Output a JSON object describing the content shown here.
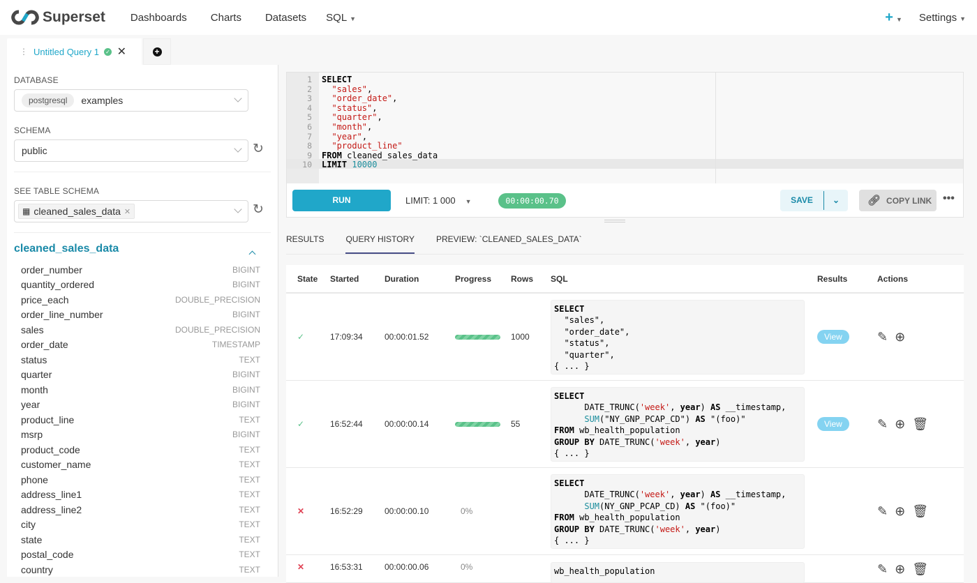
{
  "nav": {
    "brand": "Superset",
    "items": [
      "Dashboards",
      "Charts",
      "Datasets",
      "SQL"
    ],
    "settings": "Settings"
  },
  "query_tab": {
    "title": "Untitled Query 1"
  },
  "left": {
    "database_label": "DATABASE",
    "database_engine": "postgresql",
    "database": "examples",
    "schema_label": "SCHEMA",
    "schema": "public",
    "table_label": "SEE TABLE SCHEMA",
    "table": "cleaned_sales_data",
    "table_name": "cleaned_sales_data",
    "columns": [
      {
        "name": "order_number",
        "type": "BIGINT"
      },
      {
        "name": "quantity_ordered",
        "type": "BIGINT"
      },
      {
        "name": "price_each",
        "type": "DOUBLE_PRECISION"
      },
      {
        "name": "order_line_number",
        "type": "BIGINT"
      },
      {
        "name": "sales",
        "type": "DOUBLE_PRECISION"
      },
      {
        "name": "order_date",
        "type": "TIMESTAMP"
      },
      {
        "name": "status",
        "type": "TEXT"
      },
      {
        "name": "quarter",
        "type": "BIGINT"
      },
      {
        "name": "month",
        "type": "BIGINT"
      },
      {
        "name": "year",
        "type": "BIGINT"
      },
      {
        "name": "product_line",
        "type": "TEXT"
      },
      {
        "name": "msrp",
        "type": "BIGINT"
      },
      {
        "name": "product_code",
        "type": "TEXT"
      },
      {
        "name": "customer_name",
        "type": "TEXT"
      },
      {
        "name": "phone",
        "type": "TEXT"
      },
      {
        "name": "address_line1",
        "type": "TEXT"
      },
      {
        "name": "address_line2",
        "type": "TEXT"
      },
      {
        "name": "city",
        "type": "TEXT"
      },
      {
        "name": "state",
        "type": "TEXT"
      },
      {
        "name": "postal_code",
        "type": "TEXT"
      },
      {
        "name": "country",
        "type": "TEXT"
      }
    ]
  },
  "editor": {
    "lines": [
      [
        [
          "SELECT",
          "k"
        ]
      ],
      [
        [
          "  ",
          ""
        ],
        [
          "\"sales\"",
          "s"
        ],
        [
          ",",
          ""
        ]
      ],
      [
        [
          "  ",
          ""
        ],
        [
          "\"order_date\"",
          "s"
        ],
        [
          ",",
          ""
        ]
      ],
      [
        [
          "  ",
          ""
        ],
        [
          "\"status\"",
          "s"
        ],
        [
          ",",
          ""
        ]
      ],
      [
        [
          "  ",
          ""
        ],
        [
          "\"quarter\"",
          "s"
        ],
        [
          ",",
          ""
        ]
      ],
      [
        [
          "  ",
          ""
        ],
        [
          "\"month\"",
          "s"
        ],
        [
          ",",
          ""
        ]
      ],
      [
        [
          "  ",
          ""
        ],
        [
          "\"year\"",
          "s"
        ],
        [
          ",",
          ""
        ]
      ],
      [
        [
          "  ",
          ""
        ],
        [
          "\"product_line\"",
          "s"
        ]
      ],
      [
        [
          "FROM",
          "k"
        ],
        [
          " cleaned_sales_data",
          ""
        ]
      ],
      [
        [
          "LIMIT",
          "k"
        ],
        [
          " ",
          ""
        ],
        [
          "10000",
          "n"
        ]
      ]
    ]
  },
  "toolbar": {
    "run": "RUN",
    "limit_label": "LIMIT:",
    "limit_value": "1 000",
    "timer": "00:00:00.70",
    "save": "SAVE",
    "copy_link": "COPY LINK"
  },
  "result_tabs": [
    "RESULTS",
    "QUERY HISTORY",
    "PREVIEW: `CLEANED_SALES_DATA`"
  ],
  "active_tab": 1,
  "history": {
    "headers": [
      "State",
      "Started",
      "Duration",
      "Progress",
      "Rows",
      "SQL",
      "Results",
      "Actions"
    ],
    "rows": [
      {
        "state": "success",
        "started": "17:09:34",
        "duration": "00:00:01.52",
        "progress": 100,
        "progress_text": "",
        "rows": "1000",
        "results": "View",
        "delete": false,
        "sql": [
          [
            [
              "SELECT",
              "k"
            ]
          ],
          [
            [
              "  ",
              ""
            ],
            [
              "\"sales\"",
              ""
            ],
            [
              ",",
              ""
            ]
          ],
          [
            [
              "  ",
              ""
            ],
            [
              "\"order_date\"",
              ""
            ],
            [
              ",",
              ""
            ]
          ],
          [
            [
              "  ",
              ""
            ],
            [
              "\"status\"",
              ""
            ],
            [
              ",",
              ""
            ]
          ],
          [
            [
              "  ",
              ""
            ],
            [
              "\"quarter\"",
              ""
            ],
            [
              ",",
              ""
            ]
          ],
          [
            [
              "{ ... }",
              ""
            ]
          ]
        ]
      },
      {
        "state": "success",
        "started": "16:52:44",
        "duration": "00:00:00.14",
        "progress": 100,
        "progress_text": "",
        "rows": "55",
        "results": "View",
        "delete": true,
        "sql": [
          [
            [
              "SELECT",
              "k"
            ]
          ],
          [
            [
              "      DATE_TRUNC(",
              ""
            ],
            [
              "'week'",
              "s"
            ],
            [
              ", ",
              ""
            ],
            [
              "year",
              "k"
            ],
            [
              ") ",
              ""
            ],
            [
              "AS",
              "k"
            ],
            [
              " __timestamp,",
              ""
            ]
          ],
          [
            [
              "      ",
              ""
            ],
            [
              "SUM",
              "f"
            ],
            [
              "(\"NY_GNP_PCAP_CD\") ",
              ""
            ],
            [
              "AS",
              "k"
            ],
            [
              " \"(foo)\"",
              ""
            ]
          ],
          [
            [
              "FROM",
              "k"
            ],
            [
              " wb_health_population",
              ""
            ]
          ],
          [
            [
              "GROUP BY",
              "k"
            ],
            [
              " DATE_TRUNC(",
              ""
            ],
            [
              "'week'",
              "s"
            ],
            [
              ", ",
              ""
            ],
            [
              "year",
              "k"
            ],
            [
              ")",
              ""
            ]
          ],
          [
            [
              "{ ... }",
              ""
            ]
          ]
        ]
      },
      {
        "state": "failed",
        "started": "16:52:29",
        "duration": "00:00:00.10",
        "progress": 0,
        "progress_text": "0%",
        "rows": "",
        "results": "",
        "delete": true,
        "sql": [
          [
            [
              "SELECT",
              "k"
            ]
          ],
          [
            [
              "      DATE_TRUNC(",
              ""
            ],
            [
              "'week'",
              "s"
            ],
            [
              ", ",
              ""
            ],
            [
              "year",
              "k"
            ],
            [
              ") ",
              ""
            ],
            [
              "AS",
              "k"
            ],
            [
              " __timestamp,",
              ""
            ]
          ],
          [
            [
              "      ",
              ""
            ],
            [
              "SUM",
              "f"
            ],
            [
              "(NY_GNP_PCAP_CD) ",
              ""
            ],
            [
              "AS",
              "k"
            ],
            [
              " \"(foo)\"",
              ""
            ]
          ],
          [
            [
              "FROM",
              "k"
            ],
            [
              " wb_health_population",
              ""
            ]
          ],
          [
            [
              "GROUP BY",
              "k"
            ],
            [
              " DATE_TRUNC(",
              ""
            ],
            [
              "'week'",
              "s"
            ],
            [
              ", ",
              ""
            ],
            [
              "year",
              "k"
            ],
            [
              ")",
              ""
            ]
          ],
          [
            [
              "{ ... }",
              ""
            ]
          ]
        ]
      },
      {
        "state": "failed",
        "started": "16:53:31",
        "duration": "00:00:00.06",
        "progress": 0,
        "progress_text": "0%",
        "rows": "",
        "results": "",
        "delete": true,
        "sql": [
          [
            [
              "wb_health_population",
              ""
            ]
          ]
        ]
      }
    ]
  },
  "colors": {
    "accent": "#20a7c9",
    "success": "#5ac189",
    "error": "#e04355",
    "brand_dark": "#484848"
  }
}
